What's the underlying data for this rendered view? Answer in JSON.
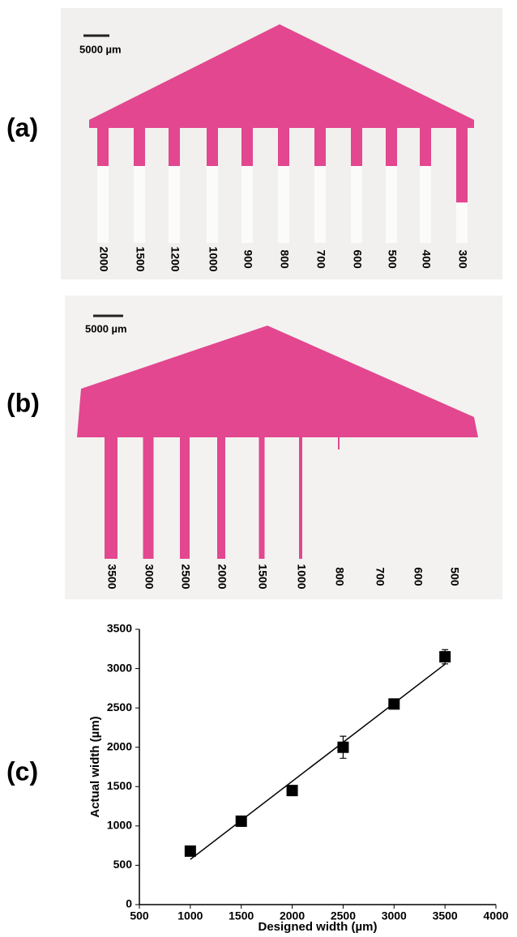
{
  "panels": [
    {
      "label": "(a)",
      "scale_bar": "5000 µm",
      "widths": [
        "2000",
        "1500",
        "1200",
        "1000",
        "900",
        "800",
        "700",
        "600",
        "500",
        "400",
        "300"
      ]
    },
    {
      "label": "(b)",
      "scale_bar": "5000 µm",
      "widths": [
        "3500",
        "3000",
        "2500",
        "2000",
        "1500",
        "1000",
        "800",
        "700",
        "600",
        "500"
      ]
    },
    {
      "label": "(c)"
    }
  ],
  "chart_data": {
    "type": "scatter",
    "x_label": "Designed width (µm)",
    "y_label": "Actual width (µm)",
    "x": [
      1000,
      1500,
      2000,
      2500,
      3000,
      3500
    ],
    "values": [
      680,
      1060,
      1450,
      2000,
      2550,
      3150
    ],
    "errors": [
      30,
      30,
      60,
      140,
      20,
      90
    ],
    "color": "#000000",
    "trendline": "linear",
    "xlim": [
      500,
      4000
    ],
    "xticks": [
      500,
      1000,
      1500,
      2000,
      2500,
      3000,
      3500,
      4000
    ],
    "ylim": [
      0,
      3500
    ],
    "yticks": [
      0,
      500,
      1000,
      1500,
      2000,
      2500,
      3000,
      3500
    ]
  }
}
